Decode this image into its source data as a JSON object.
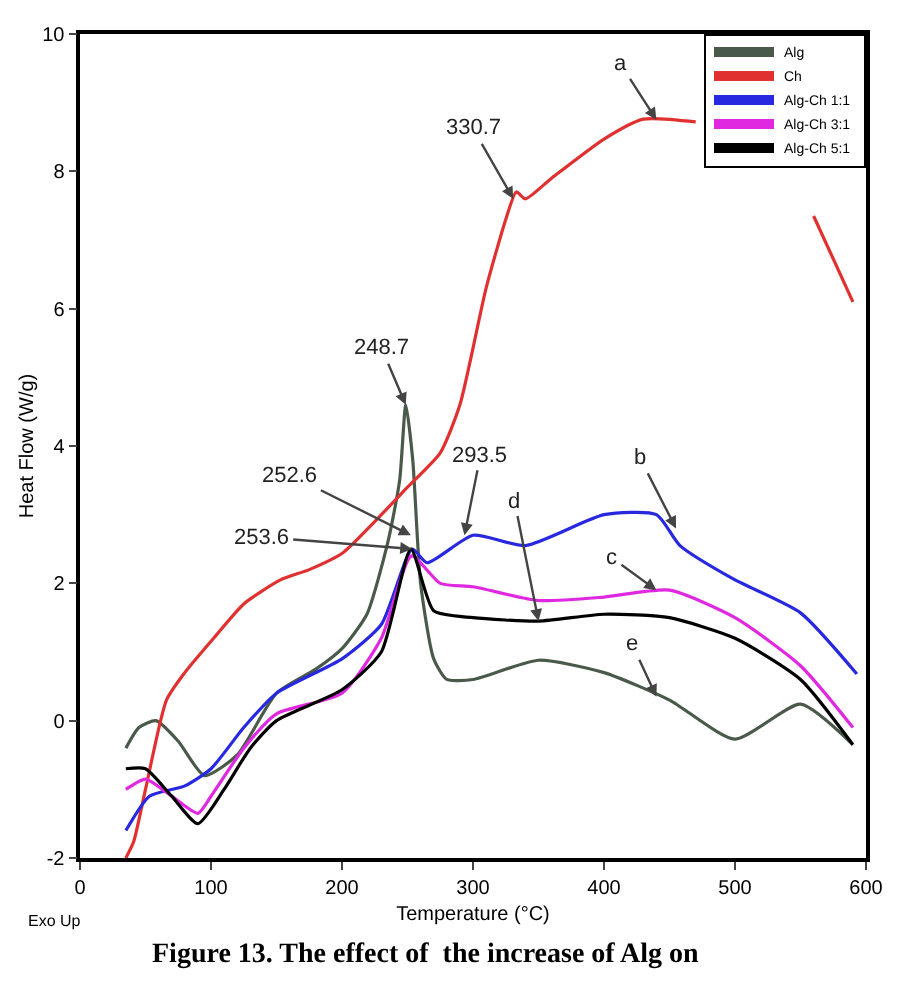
{
  "chart_data": {
    "type": "line",
    "xlabel": "Temperature (°C)",
    "ylabel": "Heat Flow (W/g)",
    "xlim": [
      0,
      600
    ],
    "xticks": [
      0,
      100,
      200,
      300,
      400,
      500,
      600
    ],
    "ylim": [
      -2,
      10
    ],
    "yticks": [
      -2,
      0,
      2,
      4,
      6,
      8,
      10
    ],
    "grid": false,
    "legend": "top right",
    "marker": "none",
    "line_style": "solid",
    "series": [
      {
        "name": "Alg",
        "color": "#4a5a4a",
        "x": [
          35,
          45,
          58,
          75,
          95,
          120,
          150,
          180,
          200,
          219,
          235,
          244,
          248.7,
          254,
          260,
          270,
          280,
          300,
          350,
          400,
          450,
          500,
          550,
          590
        ],
        "values": [
          -0.4,
          -0.1,
          0,
          -0.3,
          -0.8,
          -0.5,
          0.4,
          0.75,
          1.05,
          1.55,
          2.6,
          3.5,
          4.6,
          3.8,
          2,
          0.9,
          0.6,
          0.6,
          0.88,
          0.7,
          0.3,
          -0.27,
          0.24,
          -0.35
        ]
      },
      {
        "name": "Ch",
        "color": "#e03030",
        "x": [
          35,
          41,
          50,
          66,
          80,
          102,
          125,
          153,
          175,
          201,
          225,
          250,
          275,
          290,
          310,
          325,
          333,
          340,
          360,
          400,
          430,
          470,
          500,
          530,
          560,
          590
        ],
        "values": [
          -2,
          -1.76,
          -1,
          0.3,
          0.7,
          1.2,
          1.7,
          2.05,
          2.2,
          2.45,
          2.9,
          3.4,
          3.9,
          4.6,
          6.3,
          7.3,
          7.7,
          7.6,
          7.9,
          8.47,
          8.76,
          8.72,
          null,
          null,
          7.35,
          6.1
        ]
      },
      {
        "name": "Alg-Ch 1:1",
        "color": "#2828e0",
        "x": [
          35,
          53,
          80,
          100,
          125,
          150,
          200,
          230,
          253.6,
          265,
          300,
          340,
          400,
          440,
          458,
          499,
          550,
          593
        ],
        "values": [
          -1.6,
          -1.1,
          -0.95,
          -0.7,
          -0.1,
          0.4,
          0.9,
          1.4,
          2.5,
          2.3,
          2.7,
          2.55,
          3,
          3,
          2.55,
          2.06,
          1.57,
          0.68
        ]
      },
      {
        "name": "Alg-Ch 3:1",
        "color": "#e028e0",
        "x": [
          35,
          50,
          70,
          90,
          100,
          125,
          150,
          200,
          230,
          253,
          275,
          300,
          350,
          400,
          450,
          500,
          550,
          590
        ],
        "values": [
          -1,
          -0.85,
          -1.1,
          -1.35,
          -1.1,
          -0.4,
          0.1,
          0.4,
          1.2,
          2.4,
          2,
          1.95,
          1.75,
          1.8,
          1.9,
          1.5,
          0.8,
          -0.1
        ]
      },
      {
        "name": "Alg-Ch 5:1",
        "color": "#000000",
        "x": [
          35,
          50,
          70,
          90,
          110,
          130,
          150,
          200,
          230,
          252.6,
          270,
          300,
          350,
          400,
          450,
          500,
          550,
          590
        ],
        "values": [
          -0.7,
          -0.7,
          -1.1,
          -1.5,
          -1,
          -0.4,
          0,
          0.45,
          1,
          2.5,
          1.6,
          1.5,
          1.45,
          1.55,
          1.5,
          1.2,
          0.6,
          -0.35
        ]
      }
    ],
    "annotations": [
      {
        "text": "248.7",
        "x": 248.7,
        "y": 4.6
      },
      {
        "text": "330.7",
        "x": 330.7,
        "y": 7.6
      },
      {
        "text": "252.6",
        "x": 252.6,
        "y": 2.7
      },
      {
        "text": "253.6",
        "x": 253.6,
        "y": 2.5
      },
      {
        "text": "293.5",
        "x": 293.5,
        "y": 2.7
      },
      {
        "text": "a",
        "x": 440,
        "y": 8.75
      },
      {
        "text": "b",
        "x": 455,
        "y": 2.8
      },
      {
        "text": "c",
        "x": 440,
        "y": 1.9
      },
      {
        "text": "d",
        "x": 350,
        "y": 1.45
      },
      {
        "text": "e",
        "x": 440,
        "y": 0.35
      },
      "Exo Up",
      "Figure 13. The effect of  the increase of Alg on"
    ]
  }
}
